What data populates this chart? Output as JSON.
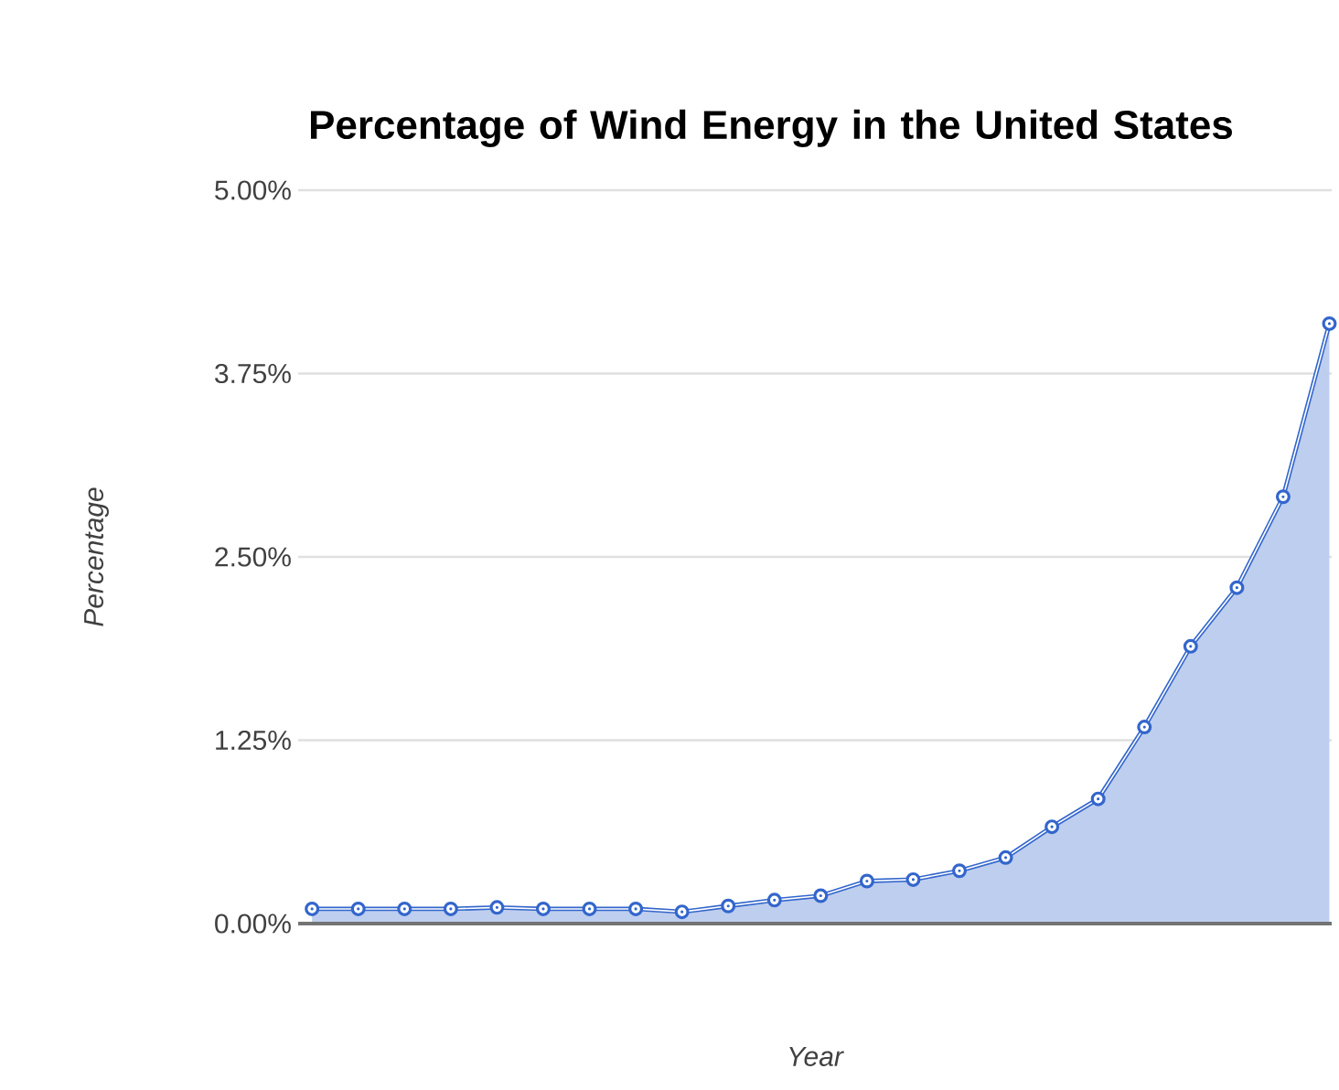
{
  "chart_data": {
    "type": "area",
    "title": "Percentage of Wind Energy in the United States",
    "xlabel": "Year",
    "ylabel": "Percentage",
    "categories": [
      null,
      null,
      null,
      null,
      null,
      null,
      null,
      null,
      null,
      null,
      null,
      null,
      null,
      null,
      null,
      null,
      null,
      null,
      null,
      null,
      null,
      null,
      null
    ],
    "series": [
      {
        "color": "#3366cc",
        "values": [
          0.1,
          0.1,
          0.1,
          0.1,
          0.11,
          0.1,
          0.1,
          0.1,
          0.08,
          0.12,
          0.16,
          0.19,
          0.29,
          0.3,
          0.36,
          0.45,
          0.66,
          0.85,
          1.34,
          1.89,
          2.29,
          2.91,
          4.09
        ]
      }
    ],
    "ylim": [
      0,
      5
    ],
    "yticks": [
      {
        "value": 0,
        "label": "0.00%"
      },
      {
        "value": 1.25,
        "label": "1.25%"
      },
      {
        "value": 2.5,
        "label": "2.50%"
      },
      {
        "value": 3.75,
        "label": "3.75%"
      },
      {
        "value": 5,
        "label": "5.00%"
      }
    ],
    "grid": "y",
    "marker": "circle",
    "tick_labels": "y"
  }
}
